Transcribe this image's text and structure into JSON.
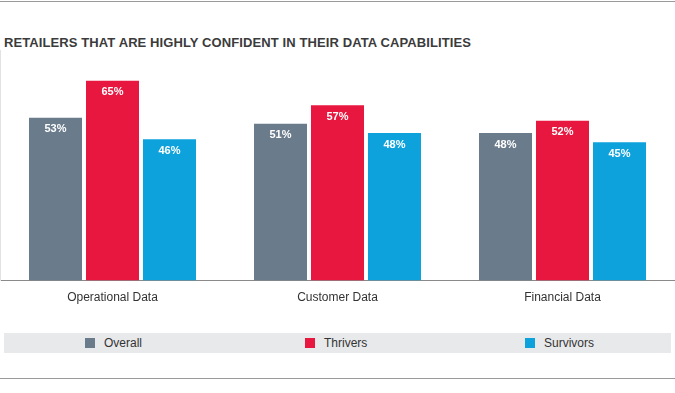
{
  "chart_data": {
    "type": "bar",
    "title": "RETAILERS THAT ARE HIGHLY CONFIDENT IN THEIR DATA CAPABILITIES",
    "categories": [
      "Operational Data",
      "Customer Data",
      "Financial Data"
    ],
    "series": [
      {
        "name": "Overall",
        "color": "#6a7b8c",
        "values": [
          53,
          51,
          48
        ],
        "value_labels": [
          "53%",
          "51%",
          "48%"
        ]
      },
      {
        "name": "Thrivers",
        "color": "#e8173f",
        "values": [
          65,
          57,
          52
        ],
        "value_labels": [
          "65%",
          "57%",
          "52%"
        ]
      },
      {
        "name": "Survivors",
        "color": "#0ea2dc",
        "values": [
          46,
          48,
          45
        ],
        "value_labels": [
          "46%",
          "48%",
          "45%"
        ]
      }
    ],
    "ylim": [
      0,
      75
    ],
    "grid": false,
    "legend": "bottom",
    "data_labels": true,
    "tick_labels": "x"
  }
}
